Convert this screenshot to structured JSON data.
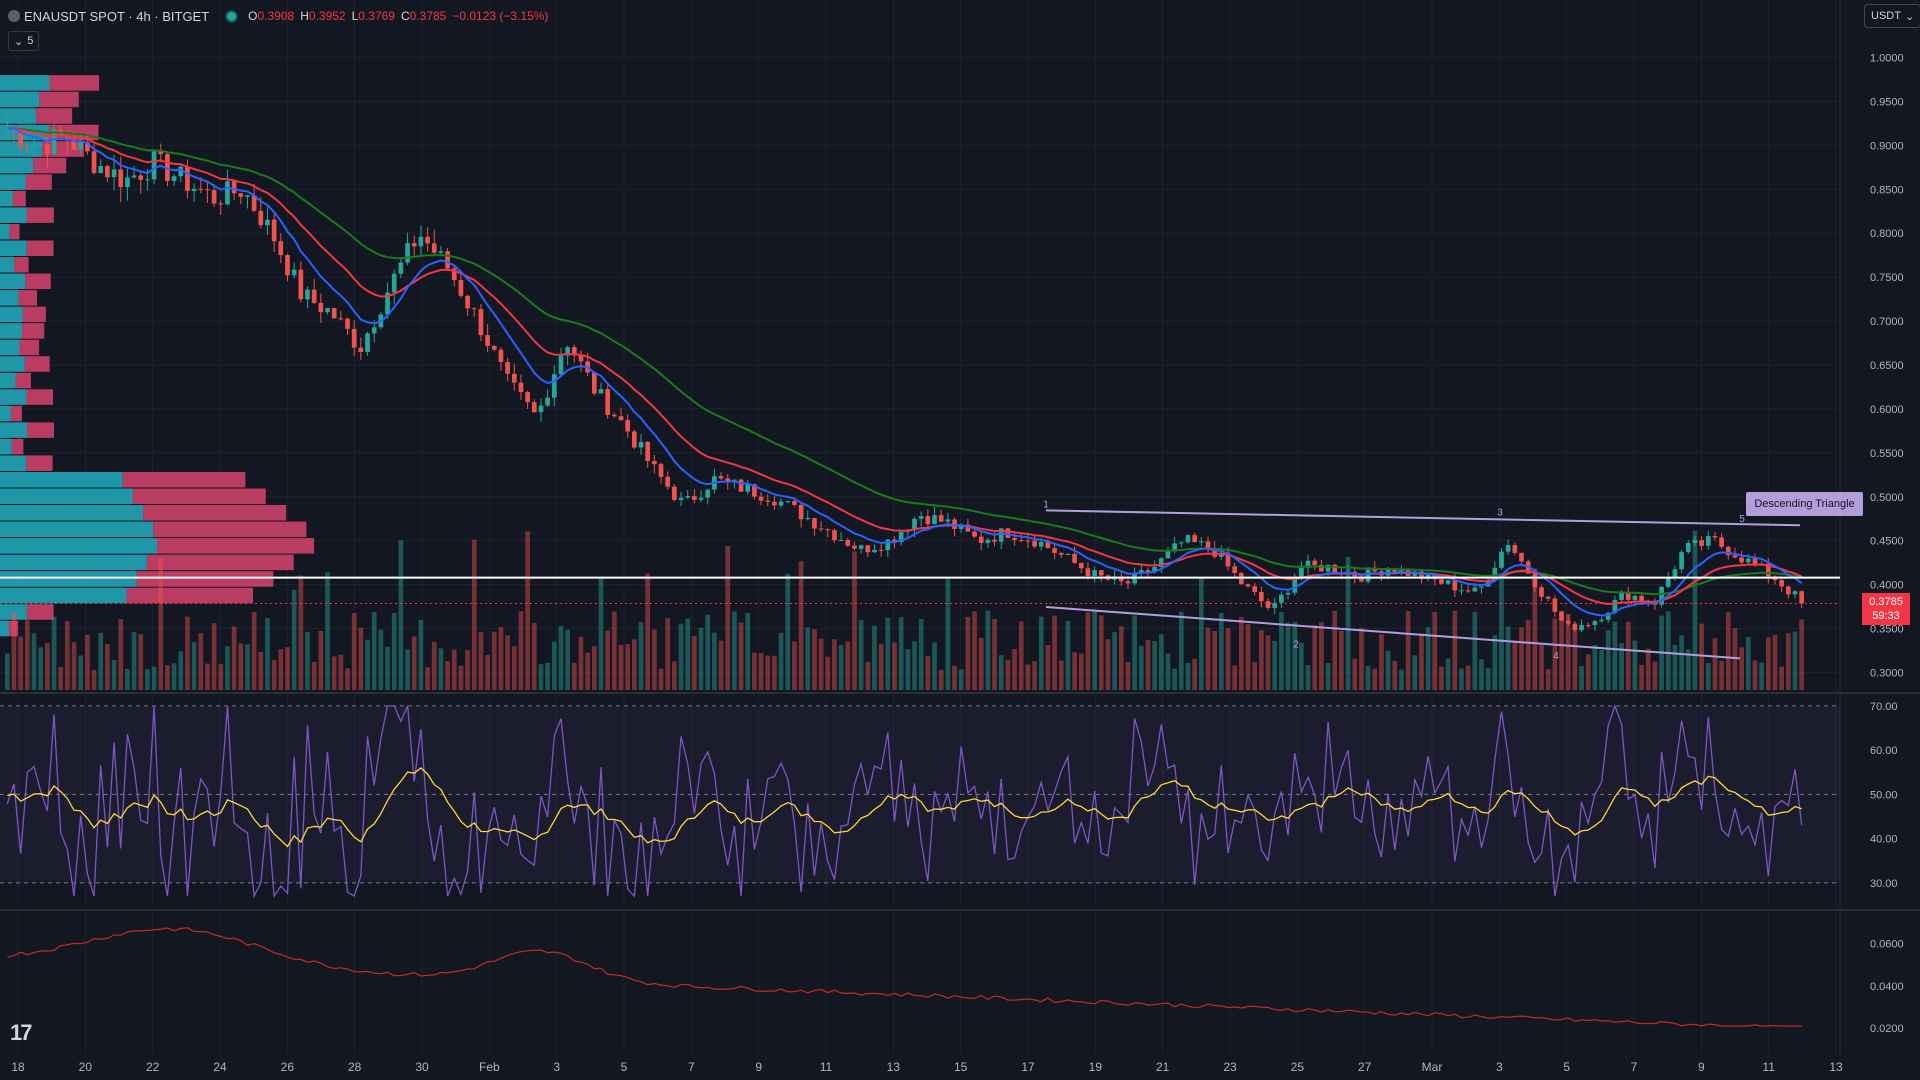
{
  "header": {
    "symbol": "ENAUSDT SPOT · 4h · BITGET",
    "open_label": "O",
    "open": "0.3908",
    "high_label": "H",
    "high": "0.3952",
    "low_label": "L",
    "low": "0.3769",
    "close_label": "C",
    "close": "0.3785",
    "change": "−0.0123 (−3.15%)",
    "indicator_count": "5"
  },
  "currency_button": "USDT",
  "price_scale": {
    "labels": [
      "1.0000",
      "0.9500",
      "0.9000",
      "0.8500",
      "0.8000",
      "0.7500",
      "0.7000",
      "0.6500",
      "0.6000",
      "0.5500",
      "0.5000",
      "0.4500",
      "0.4000",
      "0.3500",
      "0.3000"
    ]
  },
  "last_price": {
    "price": "0.3785",
    "countdown": "59:33"
  },
  "rsi_scale": {
    "labels": [
      "70.00",
      "60.00",
      "50.00",
      "40.00",
      "30.00"
    ]
  },
  "third_scale": {
    "labels": [
      "0.0600",
      "0.0400",
      "0.0200"
    ]
  },
  "time_axis": {
    "labels": [
      "18",
      "20",
      "22",
      "24",
      "26",
      "28",
      "30",
      "Feb",
      "3",
      "5",
      "7",
      "9",
      "11",
      "13",
      "15",
      "17",
      "19",
      "21",
      "23",
      "25",
      "27",
      "Mar",
      "3",
      "5",
      "7",
      "9",
      "11",
      "13"
    ]
  },
  "pattern": {
    "label": "Descending Triangle",
    "points": [
      "1",
      "2",
      "3",
      "4",
      "5"
    ]
  },
  "colors": {
    "background": "#131722",
    "up": "#26a69a",
    "down": "#ef5350",
    "ema_fast": "#2962ff",
    "ema_mid": "#f23645",
    "ema_slow": "#1b7a1b",
    "rsi": "#7e57c2",
    "rsi_ma": "#fdd835",
    "pattern": "#b39ddb"
  },
  "chart_data": {
    "type": "candlestick",
    "price_path": [
      0.92,
      0.9,
      0.91,
      0.88,
      0.86,
      0.88,
      0.86,
      0.84,
      0.85,
      0.8,
      0.73,
      0.71,
      0.67,
      0.74,
      0.8,
      0.76,
      0.7,
      0.63,
      0.59,
      0.68,
      0.62,
      0.58,
      0.53,
      0.49,
      0.52,
      0.51,
      0.5,
      0.48,
      0.46,
      0.44,
      0.45,
      0.48,
      0.47,
      0.45,
      0.46,
      0.45,
      0.43,
      0.41,
      0.4,
      0.42,
      0.45,
      0.44,
      0.4,
      0.37,
      0.42,
      0.42,
      0.41,
      0.42,
      0.41,
      0.4,
      0.39,
      0.45,
      0.4,
      0.35,
      0.36,
      0.39,
      0.38,
      0.44,
      0.45,
      0.43,
      0.41,
      0.38
    ],
    "current_price": 0.3785,
    "horizontal_level": 0.408,
    "y_range": [
      0.28,
      1.02
    ],
    "rsi_range": [
      25,
      72
    ]
  }
}
